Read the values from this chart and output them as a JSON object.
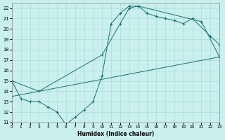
{
  "xlabel": "Humidex (Indice chaleur)",
  "bg_color": "#caf0ee",
  "grid_color": "#aadcda",
  "line_color": "#1a7070",
  "xlim": [
    0,
    23
  ],
  "ylim": [
    11,
    22.5
  ],
  "xticks": [
    0,
    1,
    2,
    3,
    4,
    5,
    6,
    7,
    8,
    9,
    10,
    11,
    12,
    13,
    14,
    15,
    16,
    17,
    18,
    19,
    20,
    21,
    22,
    23
  ],
  "yticks": [
    11,
    12,
    13,
    14,
    15,
    16,
    17,
    18,
    19,
    20,
    21,
    22
  ],
  "series": [
    {
      "x": [
        0,
        1,
        2,
        3,
        4,
        5,
        6,
        7,
        8,
        9,
        10,
        11,
        12,
        13,
        14,
        21,
        23
      ],
      "y": [
        15.0,
        13.3,
        13.0,
        13.0,
        12.5,
        12.0,
        10.8,
        11.5,
        12.2,
        13.0,
        15.5,
        20.5,
        21.5,
        22.2,
        22.2,
        20.7,
        17.3
      ],
      "marker": true
    },
    {
      "x": [
        0,
        3,
        10,
        12,
        13,
        14,
        15,
        16,
        17,
        18,
        19,
        20,
        22,
        23
      ],
      "y": [
        15.0,
        14.0,
        17.5,
        20.5,
        22.0,
        22.2,
        21.5,
        21.2,
        21.0,
        20.8,
        20.5,
        21.0,
        19.3,
        18.5
      ],
      "marker": true
    },
    {
      "x": [
        0,
        23
      ],
      "y": [
        13.5,
        17.3
      ],
      "marker": false
    }
  ]
}
